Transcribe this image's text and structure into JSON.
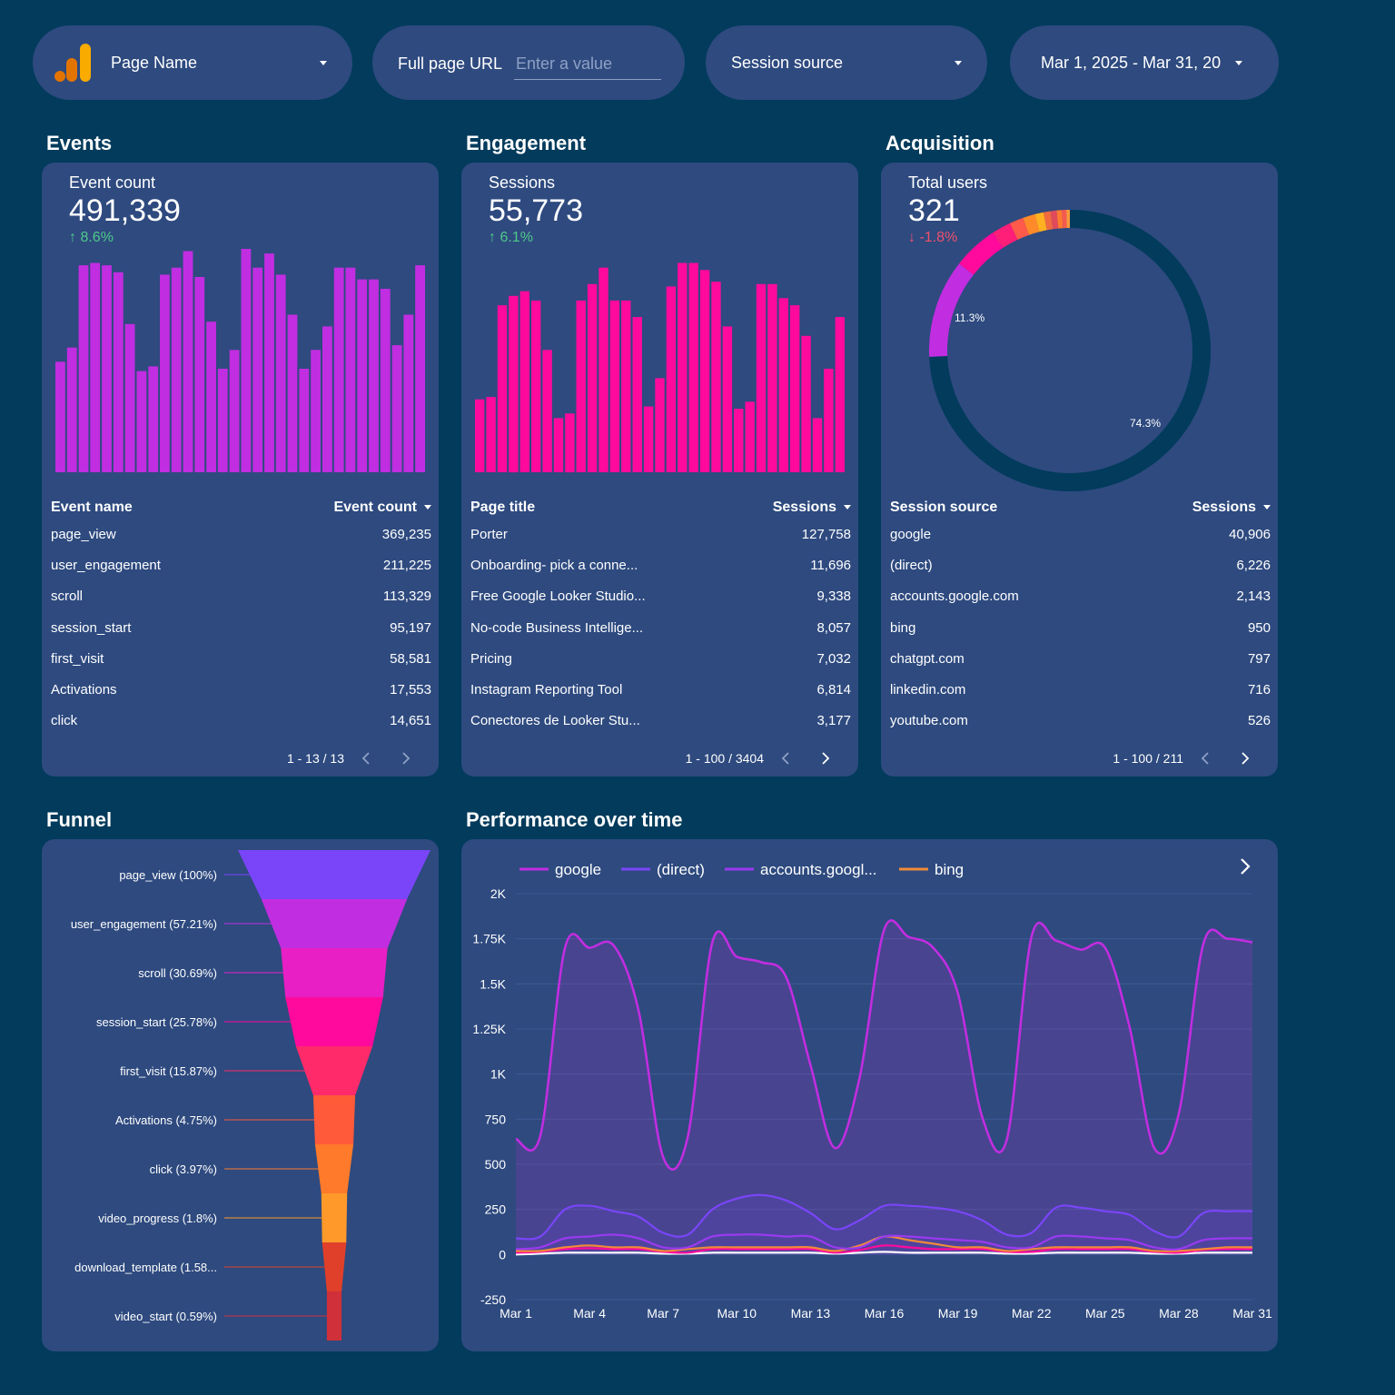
{
  "filters": {
    "page_name": "Page Name",
    "page_url_label": "Full page URL",
    "page_url_placeholder": "Enter a value",
    "session_source": "Session source",
    "date_range": "Mar 1, 2025 - Mar 31, 20"
  },
  "colors": {
    "background": "#023b5c",
    "card": "#2e4a7f",
    "events_bar": "#c12de0",
    "engagement_bar": "#ff0a9c",
    "up": "#4fc98a",
    "down": "#f0506e"
  },
  "events": {
    "title": "Events",
    "metric_label": "Event count",
    "metric_value": "491,339",
    "delta": "8.6%",
    "table": {
      "col1": "Event name",
      "col2": "Event count",
      "rows": [
        {
          "name": "page_view",
          "value": "369,235"
        },
        {
          "name": "user_engagement",
          "value": "211,225"
        },
        {
          "name": "scroll",
          "value": "113,329"
        },
        {
          "name": "session_start",
          "value": "95,197"
        },
        {
          "name": "first_visit",
          "value": "58,581"
        },
        {
          "name": "Activations",
          "value": "17,553"
        },
        {
          "name": "click",
          "value": "14,651"
        }
      ],
      "pagination": "1 - 13 / 13"
    }
  },
  "engagement": {
    "title": "Engagement",
    "metric_label": "Sessions",
    "metric_value": "55,773",
    "delta": "6.1%",
    "table": {
      "col1": "Page title",
      "col2": "Sessions",
      "rows": [
        {
          "name": "Porter",
          "value": "127,758"
        },
        {
          "name": "Onboarding- pick a conne...",
          "value": "11,696"
        },
        {
          "name": "Free Google Looker Studio...",
          "value": "9,338"
        },
        {
          "name": "No-code Business Intellige...",
          "value": "8,057"
        },
        {
          "name": "Pricing",
          "value": "7,032"
        },
        {
          "name": "Instagram Reporting Tool",
          "value": "6,814"
        },
        {
          "name": "Conectores de Looker Stu...",
          "value": "3,177"
        }
      ],
      "pagination": "1 - 100 / 3404"
    }
  },
  "acquisition": {
    "title": "Acquisition",
    "metric_label": "Total users",
    "metric_value": "321",
    "delta": "-1.8%",
    "table": {
      "col1": "Session source",
      "col2": "Sessions",
      "rows": [
        {
          "name": "google",
          "value": "40,906"
        },
        {
          "name": "(direct)",
          "value": "6,226"
        },
        {
          "name": "accounts.google.com",
          "value": "2,143"
        },
        {
          "name": "bing",
          "value": "950"
        },
        {
          "name": "chatgpt.com",
          "value": "797"
        },
        {
          "name": "linkedin.com",
          "value": "716"
        },
        {
          "name": "youtube.com",
          "value": "526"
        }
      ],
      "pagination": "1 - 100 / 211"
    }
  },
  "funnel": {
    "title": "Funnel"
  },
  "performance": {
    "title": "Performance over time"
  },
  "chart_data": [
    {
      "id": "events_bars",
      "type": "bar",
      "values": [
        47,
        53,
        88,
        89,
        88,
        85,
        63,
        43,
        45,
        84,
        87,
        94,
        83,
        64,
        44,
        52,
        95,
        87,
        93,
        84,
        67,
        44,
        52,
        62,
        87,
        87,
        82,
        82,
        78,
        54,
        67,
        88
      ],
      "ylim": [
        0,
        100
      ]
    },
    {
      "id": "engagement_bars",
      "type": "bar",
      "values": [
        31,
        32,
        71,
        75,
        77,
        73,
        52,
        23,
        25,
        73,
        80,
        87,
        73,
        73,
        66,
        28,
        40,
        79,
        89,
        89,
        86,
        81,
        62,
        27,
        30,
        80,
        80,
        74,
        71,
        58,
        23,
        44,
        66
      ],
      "ylim": [
        0,
        100
      ]
    },
    {
      "id": "acquisition_donut",
      "type": "pie",
      "labels": [
        "74.3%",
        "11.3%"
      ],
      "slices": [
        {
          "value": 74.3,
          "color": "#023b5c"
        },
        {
          "value": 11.3,
          "color": "#c12de0"
        },
        {
          "value": 5.2,
          "color": "#ff0a9c"
        },
        {
          "value": 2.2,
          "color": "#ff1e78"
        },
        {
          "value": 1.6,
          "color": "#ff5a4a"
        },
        {
          "value": 1.4,
          "color": "#ff8a2a"
        },
        {
          "value": 1.0,
          "color": "#ffb020"
        },
        {
          "value": 0.8,
          "color": "#f06a40"
        },
        {
          "value": 0.7,
          "color": "#e04a5a"
        },
        {
          "value": 0.6,
          "color": "#ff7a30"
        },
        {
          "value": 0.5,
          "color": "#f45a50"
        },
        {
          "value": 0.4,
          "color": "#ff9a3a"
        }
      ]
    },
    {
      "id": "funnel",
      "type": "bar",
      "categories": [
        "page_view (100%)",
        "user_engagement (57.21%)",
        "scroll (30.69%)",
        "session_start (25.78%)",
        "first_visit (15.87%)",
        "Activations (4.75%)",
        "click (3.97%)",
        "video_progress (1.8%)",
        "download_template (1.58...",
        "video_start (0.59%)"
      ],
      "values": [
        100,
        57.21,
        30.69,
        25.78,
        15.87,
        4.75,
        3.97,
        1.8,
        1.58,
        0.59
      ],
      "colors": [
        "#7a45f8",
        "#c12de0",
        "#e81fc4",
        "#ff0a9c",
        "#ff2a6a",
        "#ff5a3a",
        "#ff7a2a",
        "#ff9a2a",
        "#e0402a",
        "#d0303a"
      ]
    },
    {
      "id": "performance",
      "type": "line",
      "x": [
        "Mar 1",
        "Mar 2",
        "Mar 3",
        "Mar 4",
        "Mar 5",
        "Mar 6",
        "Mar 7",
        "Mar 8",
        "Mar 9",
        "Mar 10",
        "Mar 11",
        "Mar 12",
        "Mar 13",
        "Mar 14",
        "Mar 15",
        "Mar 16",
        "Mar 17",
        "Mar 18",
        "Mar 19",
        "Mar 20",
        "Mar 21",
        "Mar 22",
        "Mar 23",
        "Mar 24",
        "Mar 25",
        "Mar 26",
        "Mar 27",
        "Mar 28",
        "Mar 29",
        "Mar 30",
        "Mar 31"
      ],
      "xticks": [
        "Mar 1",
        "Mar 4",
        "Mar 7",
        "Mar 10",
        "Mar 13",
        "Mar 16",
        "Mar 19",
        "Mar 22",
        "Mar 25",
        "Mar 28",
        "Mar 31"
      ],
      "yticks": [
        "-250",
        "0",
        "250",
        "500",
        "750",
        "1K",
        "1.25K",
        "1.5K",
        "1.75K",
        "2K"
      ],
      "ylim": [
        -250,
        2000
      ],
      "legend": [
        "google",
        "(direct)",
        "accounts.googl...",
        "bing"
      ],
      "series": [
        {
          "name": "google",
          "color": "#c12de0",
          "values": [
            640,
            660,
            1700,
            1700,
            1710,
            1350,
            540,
            650,
            1730,
            1650,
            1620,
            1540,
            1050,
            590,
            980,
            1800,
            1760,
            1700,
            1450,
            760,
            640,
            1760,
            1740,
            1690,
            1700,
            1260,
            590,
            780,
            1720,
            1750,
            1730
          ]
        },
        {
          "name": "(direct)",
          "color": "#7a45f8",
          "values": [
            90,
            100,
            250,
            270,
            240,
            210,
            120,
            110,
            250,
            310,
            330,
            300,
            230,
            140,
            190,
            270,
            270,
            260,
            240,
            190,
            110,
            120,
            260,
            260,
            240,
            220,
            130,
            100,
            230,
            240,
            240
          ]
        },
        {
          "name": "accounts.googl...",
          "color": "#9a3af0",
          "values": [
            30,
            40,
            90,
            100,
            110,
            90,
            40,
            40,
            100,
            110,
            110,
            100,
            100,
            40,
            40,
            100,
            100,
            90,
            80,
            70,
            40,
            40,
            100,
            100,
            90,
            80,
            40,
            30,
            80,
            90,
            90
          ]
        },
        {
          "name": "bing",
          "color": "#f08a3a",
          "values": [
            20,
            20,
            40,
            50,
            40,
            40,
            20,
            30,
            40,
            40,
            40,
            40,
            40,
            20,
            50,
            100,
            80,
            60,
            40,
            40,
            20,
            30,
            40,
            40,
            40,
            40,
            20,
            20,
            30,
            40,
            40
          ]
        },
        {
          "name": "",
          "color": "#ff0a9c",
          "values": [
            10,
            15,
            30,
            35,
            30,
            30,
            15,
            10,
            30,
            30,
            30,
            30,
            30,
            10,
            25,
            50,
            40,
            30,
            30,
            30,
            15,
            15,
            30,
            30,
            30,
            30,
            15,
            10,
            25,
            30,
            30
          ]
        },
        {
          "name": "",
          "color": "#ffffff",
          "values": [
            0,
            5,
            10,
            10,
            10,
            10,
            5,
            5,
            10,
            10,
            10,
            10,
            10,
            5,
            10,
            15,
            10,
            10,
            10,
            10,
            5,
            5,
            10,
            10,
            10,
            10,
            5,
            5,
            10,
            10,
            10
          ]
        }
      ]
    }
  ]
}
